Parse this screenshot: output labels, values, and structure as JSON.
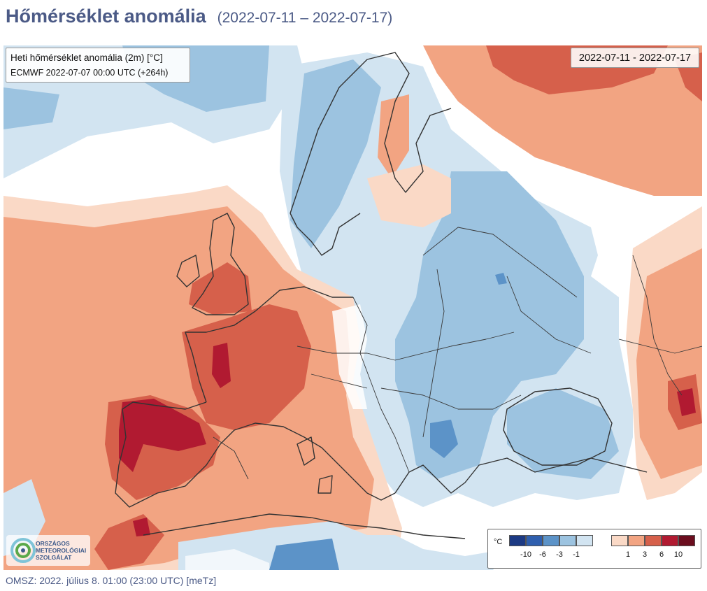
{
  "page": {
    "title": "Hőmérséklet anomália",
    "subtitle": "(2022-07-11 – 2022-07-17)"
  },
  "map": {
    "info_line1": "Heti hőmérséklet anomália (2m) [°C]",
    "info_line2": "ECMWF 2022-07-07 00:00 UTC (+264h)",
    "date_range": "2022-07-11 - 2022-07-17",
    "colors": {
      "water_and_neutral": "#ffffff",
      "cold_-1": "#d2e4f1",
      "cold_-3": "#9cc3e0",
      "cold_-6": "#5c93c8",
      "cold_-10": "#2f5fae",
      "cold_extreme": "#1c3a84",
      "warm_1": "#fad9c6",
      "warm_3": "#f2a482",
      "warm_6": "#d6604b",
      "warm_10": "#b11a31",
      "warm_extreme": "#6b0d1e",
      "coastline": "#333333"
    }
  },
  "legend": {
    "unit": "°C",
    "cold_colors": [
      "#1c3a84",
      "#2f5fae",
      "#5c93c8",
      "#9cc3e0",
      "#d2e4f1"
    ],
    "warm_colors": [
      "#fad9c6",
      "#f2a482",
      "#d6604b",
      "#b11a31",
      "#6b0d1e"
    ],
    "cold_ticks": [
      "-10",
      "-6",
      "-3",
      "-1"
    ],
    "warm_ticks": [
      "1",
      "3",
      "6",
      "10"
    ]
  },
  "logo": {
    "line1": "ORSZÁGOS",
    "line2": "METEOROLÓGIAI",
    "line3": "SZOLGÁLAT"
  },
  "footer": {
    "text": "OMSZ: 2022. július 8. 01:00 (23:00  UTC)  [meTz]"
  }
}
